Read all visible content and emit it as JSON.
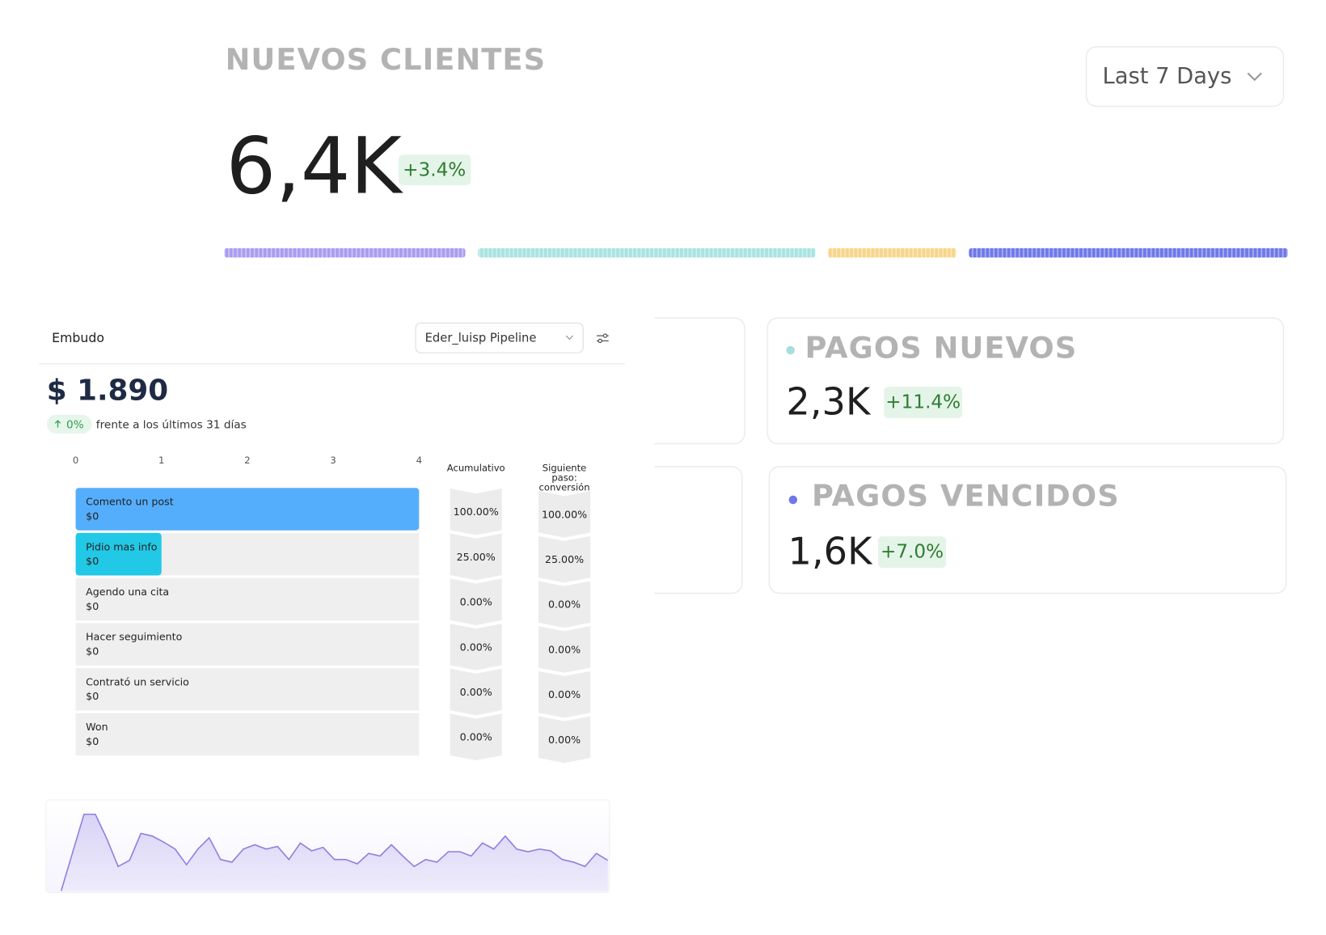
{
  "header": {
    "title": "NUEVOS CLIENTES",
    "value": "6,4K",
    "change": "+3.4%",
    "range_selector": "Last 7 Days"
  },
  "cards": [
    {
      "title": "PAGOS NUEVOS",
      "value": "2,3K",
      "change": "+11.4%",
      "dot_color": "#a8dedd"
    },
    {
      "title": "PAGOS VENCIDOS",
      "value": "1,6K",
      "change": "+7.0%",
      "dot_color": "#6f78e8"
    }
  ],
  "funnel": {
    "title": "Embudo",
    "pipeline": "Eder_luisp Pipeline",
    "total": "$ 1.890",
    "change": "0%",
    "change_note": "frente a los últimos 31 días",
    "columns": [
      {
        "title": [
          "Acumulativo"
        ],
        "cells": [
          "100.00%",
          "25.00%",
          "0.00%",
          "0.00%",
          "0.00%",
          "0.00%"
        ]
      },
      {
        "title": [
          "Siguiente",
          "paso:",
          "conversión"
        ],
        "cells": [
          "100.00%",
          "25.00%",
          "0.00%",
          "0.00%",
          "0.00%",
          "0.00%"
        ]
      }
    ]
  },
  "chart_data": [
    {
      "type": "segments",
      "values": [
        23.5,
        32.9,
        12.5,
        31.1
      ],
      "colors": [
        "#a99cf0",
        "#a8e3e0",
        "#f7d58a",
        "#6f78e8"
      ]
    },
    {
      "type": "bar",
      "orientation": "horizontal",
      "categories": [
        "Comento un post",
        "Pidio mas info",
        "Agendo una cita",
        "Hacer seguimiento",
        "Contrató un servicio",
        "Won"
      ],
      "category_amounts": [
        "$0",
        "$0",
        "$0",
        "$0",
        "$0",
        "$0"
      ],
      "values": [
        4,
        1,
        0,
        0,
        0,
        0
      ],
      "colors": [
        "#55aefc",
        "#22c9e6",
        "#55aefc",
        "#55aefc",
        "#55aefc",
        "#55aefc"
      ],
      "xlim": [
        0,
        4
      ],
      "xticks": [
        0,
        1,
        2,
        3,
        4
      ]
    },
    {
      "type": "area",
      "color": "#8a80e0",
      "values": [
        0,
        44,
        88,
        88,
        60,
        28,
        35,
        66,
        63,
        56,
        48,
        30,
        48,
        61,
        36,
        33,
        48,
        53,
        48,
        51,
        36,
        55,
        46,
        50,
        36,
        36,
        31,
        43,
        40,
        53,
        40,
        28,
        36,
        33,
        45,
        45,
        40,
        55,
        48,
        63,
        48,
        45,
        48,
        46,
        36,
        33,
        28,
        43,
        35
      ]
    }
  ]
}
